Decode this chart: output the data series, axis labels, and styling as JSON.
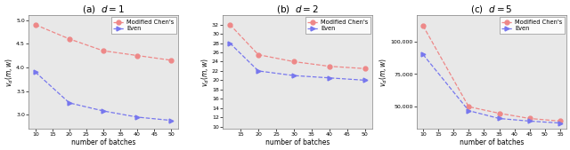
{
  "subplots": [
    {
      "title": "(a)  $d = 1$",
      "ylabel": "$v_d(m, w)$",
      "xlabel": "number of batches",
      "x_chen": [
        10,
        20,
        30,
        40,
        50
      ],
      "x_even": [
        10,
        20,
        30,
        40,
        50
      ],
      "chen_y": [
        4.9,
        4.6,
        4.35,
        4.25,
        4.15
      ],
      "even_y": [
        3.9,
        3.25,
        3.08,
        2.95,
        2.88
      ],
      "xlim": [
        8,
        52
      ],
      "ylim": [
        2.7,
        5.1
      ],
      "xticks": [
        10,
        15,
        20,
        25,
        30,
        35,
        40,
        45,
        50
      ],
      "yticks": [
        3.0,
        3.5,
        4.0,
        4.5,
        5.0
      ]
    },
    {
      "title": "(b)  $d = 2$",
      "ylabel": "$v_d(m, w)$",
      "xlabel": "number of batches",
      "x_chen": [
        12,
        20,
        30,
        40,
        50
      ],
      "x_even": [
        12,
        20,
        30,
        40,
        50
      ],
      "chen_y": [
        32.0,
        25.5,
        24.0,
        23.0,
        22.5
      ],
      "even_y": [
        28.0,
        22.0,
        21.0,
        20.5,
        20.0
      ],
      "xlim": [
        10,
        52
      ],
      "ylim": [
        9.5,
        34
      ],
      "xticks": [
        15,
        20,
        25,
        30,
        35,
        40,
        45,
        50
      ],
      "yticks": [
        10,
        12,
        14,
        16,
        18,
        20,
        22,
        24,
        26,
        28,
        30,
        32
      ]
    },
    {
      "title": "(c)  $d = 5$",
      "ylabel": "$v_d(m, w)$",
      "xlabel": "number of batches",
      "x_chen": [
        10,
        25,
        35,
        45,
        55
      ],
      "x_even": [
        10,
        25,
        35,
        45,
        55
      ],
      "chen_y": [
        112000,
        50000,
        45000,
        41000,
        39000
      ],
      "even_y": [
        90000,
        47000,
        41000,
        39000,
        37500
      ],
      "xlim": [
        8,
        57
      ],
      "ylim": [
        33000,
        120000
      ],
      "xticks": [
        10,
        15,
        20,
        25,
        30,
        35,
        40,
        45,
        50,
        55
      ],
      "yticks": [
        50000,
        75000,
        100000
      ]
    }
  ],
  "chen_color": "#EE8888",
  "even_color": "#7777EE",
  "chen_label": "Modified Chen's",
  "even_label": "Even",
  "bg_color": "#e8e8e8"
}
